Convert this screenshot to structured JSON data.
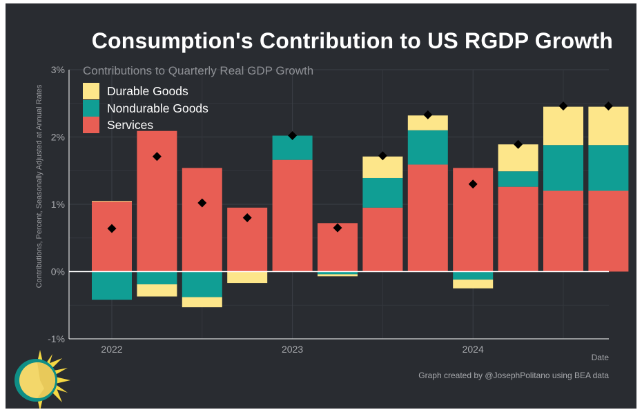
{
  "title": "Consumption's Contribution to US RGDP Growth",
  "subtitle": "Contributions to Quarterly Real GDP Growth",
  "footer": {
    "x_title": "Date",
    "credit": "Graph created by @JosephPolitano using BEA data"
  },
  "colors": {
    "background": "#292c31",
    "durable": "#fde68a",
    "nondurable": "#109e94",
    "services": "#e85e54",
    "total_marker": "#000000",
    "zero_line": "#ffffff"
  },
  "logo_icon": "sun-logo-icon",
  "chart_data": {
    "type": "bar",
    "stacked": true,
    "title": "Consumption's Contribution to US RGDP Growth",
    "subtitle": "Contributions to Quarterly Real GDP Growth",
    "xlabel": "Date",
    "ylabel": "Contributions, Percent, Seasonally Adjusted at Annual Rates",
    "ylim": [
      -1,
      3
    ],
    "yticks": [
      "-1%",
      "0%",
      "1%",
      "2%",
      "3%"
    ],
    "ytick_values": [
      -1,
      0,
      1,
      2,
      3
    ],
    "xticks": [
      "2022",
      "2023",
      "2024"
    ],
    "xtick_quarters": [
      "2022 Q1",
      "2023 Q1",
      "2024 Q1"
    ],
    "categories": [
      "2022 Q1",
      "2022 Q2",
      "2022 Q3",
      "2022 Q4",
      "2023 Q1",
      "2023 Q2",
      "2023 Q3",
      "2023 Q4",
      "2024 Q1",
      "2024 Q2",
      "2024 Q3",
      "2024 Q4"
    ],
    "series": [
      {
        "name": "Services",
        "values": [
          1.04,
          2.09,
          1.54,
          0.95,
          1.66,
          0.72,
          0.95,
          1.59,
          1.54,
          1.26,
          1.2,
          1.2
        ]
      },
      {
        "name": "Nondurable Goods",
        "values": [
          -0.42,
          -0.19,
          -0.38,
          0.0,
          0.36,
          -0.04,
          0.44,
          0.51,
          -0.12,
          0.23,
          0.68,
          0.68
        ]
      },
      {
        "name": "Durable Goods",
        "values": [
          0.01,
          -0.18,
          -0.15,
          -0.17,
          0.0,
          -0.03,
          0.32,
          0.22,
          -0.13,
          0.4,
          0.57,
          0.57
        ]
      }
    ],
    "totals": [
      0.64,
      1.71,
      1.02,
      0.8,
      2.02,
      0.65,
      1.72,
      2.33,
      1.3,
      1.89,
      2.46,
      2.46
    ],
    "legend": [
      "Durable Goods",
      "Nondurable Goods",
      "Services"
    ],
    "legend_position": "top-left",
    "grid": true
  }
}
